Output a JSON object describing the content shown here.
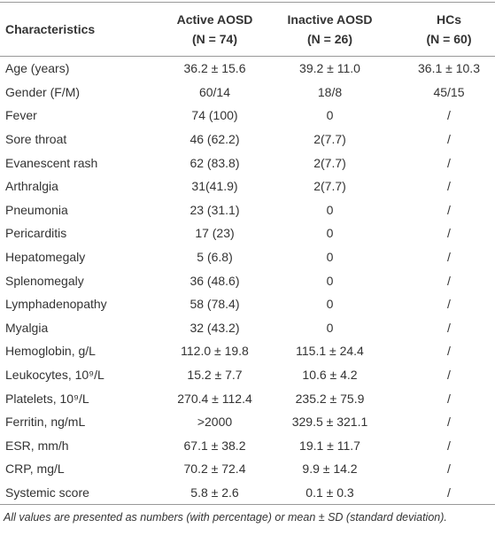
{
  "table": {
    "header": [
      [
        "Characteristics",
        ""
      ],
      [
        "Active AOSD",
        "(N = 74)"
      ],
      [
        "Inactive AOSD",
        "(N = 26)"
      ],
      [
        "HCs",
        "(N = 60)"
      ]
    ],
    "rows": [
      [
        "Age (years)",
        "36.2 ± 15.6",
        "39.2 ± 11.0",
        "36.1 ± 10.3"
      ],
      [
        "Gender (F/M)",
        "60/14",
        "18/8",
        "45/15"
      ],
      [
        "Fever",
        "74 (100)",
        "0",
        "/"
      ],
      [
        "Sore throat",
        "46 (62.2)",
        "2(7.7)",
        "/"
      ],
      [
        "Evanescent rash",
        "62 (83.8)",
        "2(7.7)",
        "/"
      ],
      [
        "Arthralgia",
        "31(41.9)",
        "2(7.7)",
        "/"
      ],
      [
        "Pneumonia",
        "23 (31.1)",
        "0",
        "/"
      ],
      [
        "Pericarditis",
        "17 (23)",
        "0",
        "/"
      ],
      [
        "Hepatomegaly",
        "5 (6.8)",
        "0",
        "/"
      ],
      [
        "Splenomegaly",
        "36 (48.6)",
        "0",
        "/"
      ],
      [
        "Lymphadenopathy",
        "58 (78.4)",
        "0",
        "/"
      ],
      [
        "Myalgia",
        "32 (43.2)",
        "0",
        "/"
      ],
      [
        "Hemoglobin, g/L",
        "112.0 ± 19.8",
        "115.1 ± 24.4",
        "/"
      ],
      [
        "Leukocytes, 10⁹/L",
        "15.2 ± 7.7",
        "10.6 ± 4.2",
        "/"
      ],
      [
        "Platelets, 10⁹/L",
        "270.4 ± 112.4",
        "235.2 ± 75.9",
        "/"
      ],
      [
        "Ferritin, ng/mL",
        ">2000",
        "329.5 ± 321.1",
        "/"
      ],
      [
        "ESR, mm/h",
        "67.1 ± 38.2",
        "19.1 ± 11.7",
        "/"
      ],
      [
        "CRP, mg/L",
        "70.2 ± 72.4",
        "9.9 ± 14.2",
        "/"
      ],
      [
        "Systemic score",
        "5.8 ± 2.6",
        "0.1 ± 0.3",
        "/"
      ]
    ],
    "footnote": "All values are presented as numbers (with percentage) or mean ± SD (standard deviation)."
  }
}
